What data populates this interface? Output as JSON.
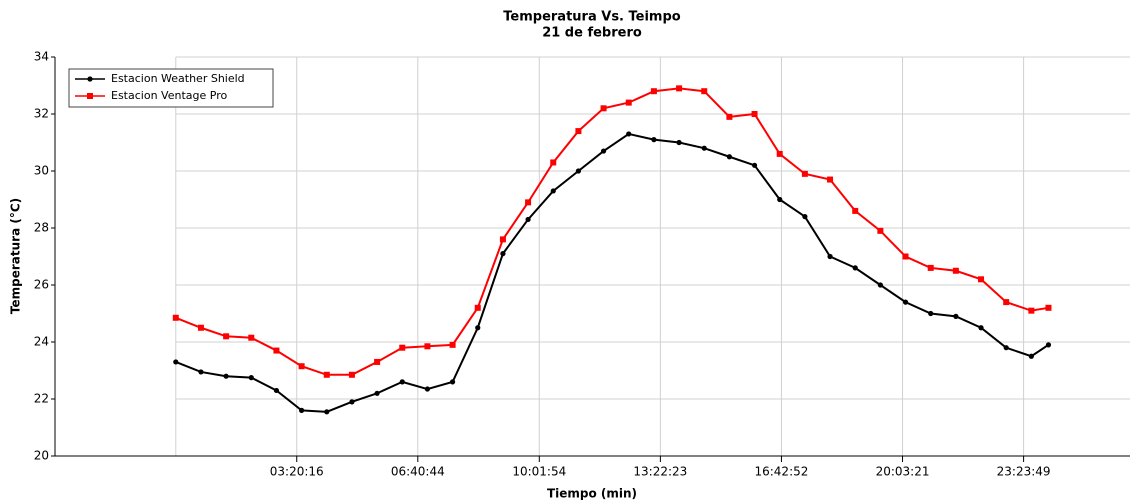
{
  "chart_data": {
    "type": "line",
    "title": "Temperatura Vs. Teimpo",
    "subtitle": "21 de febrero",
    "x_label": "Tiempo (min)",
    "y_label": "Temperatura (°C)",
    "x": [
      0,
      2500,
      5000,
      7500,
      10000,
      12500,
      15000,
      17500,
      20000,
      22500,
      25000,
      27500,
      30000,
      32500,
      35000,
      37500,
      40000,
      42500,
      45000,
      47500,
      50000,
      52500,
      55000,
      57500,
      60000,
      62500,
      65000,
      67500,
      70000,
      72500,
      75000,
      77500,
      80000,
      82500,
      85000,
      86700
    ],
    "series": [
      {
        "name": "Estacion Weather Shield",
        "color": "#000000",
        "marker": "circle",
        "values": [
          23.3,
          22.95,
          22.8,
          22.75,
          22.3,
          21.6,
          21.55,
          21.9,
          22.2,
          22.6,
          22.35,
          22.6,
          24.5,
          27.1,
          28.3,
          29.3,
          30.0,
          30.7,
          31.3,
          31.1,
          31.0,
          30.8,
          30.5,
          30.2,
          29.0,
          28.4,
          27.0,
          26.6,
          26.0,
          25.4,
          25.0,
          24.9,
          24.5,
          23.8,
          23.5,
          23.9
        ]
      },
      {
        "name": "Estacion Ventage Pro",
        "color": "#ff0000",
        "marker": "square",
        "values": [
          24.85,
          24.5,
          24.2,
          24.15,
          23.7,
          23.15,
          22.85,
          22.85,
          23.3,
          23.8,
          23.85,
          23.9,
          25.2,
          27.6,
          28.9,
          30.3,
          31.4,
          32.2,
          32.4,
          32.8,
          32.9,
          32.8,
          31.9,
          32.0,
          30.6,
          29.9,
          29.7,
          28.6,
          27.9,
          27.0,
          26.6,
          26.5,
          26.2,
          25.4,
          25.1,
          25.2
        ]
      }
    ],
    "xlim": [
      -12000,
      94800
    ],
    "ylim": [
      20,
      34
    ],
    "xticks": [
      {
        "value": 12016,
        "label": "03:20:16"
      },
      {
        "value": 24044,
        "label": "06:40:44"
      },
      {
        "value": 36114,
        "label": "10:01:54"
      },
      {
        "value": 48143,
        "label": "13:22:23"
      },
      {
        "value": 60172,
        "label": "16:42:52"
      },
      {
        "value": 72201,
        "label": "20:03:21"
      },
      {
        "value": 84229,
        "label": "23:23:49"
      }
    ],
    "yticks": [
      20,
      22,
      24,
      26,
      28,
      30,
      32,
      34
    ],
    "grid": true,
    "legend": "upper left"
  }
}
